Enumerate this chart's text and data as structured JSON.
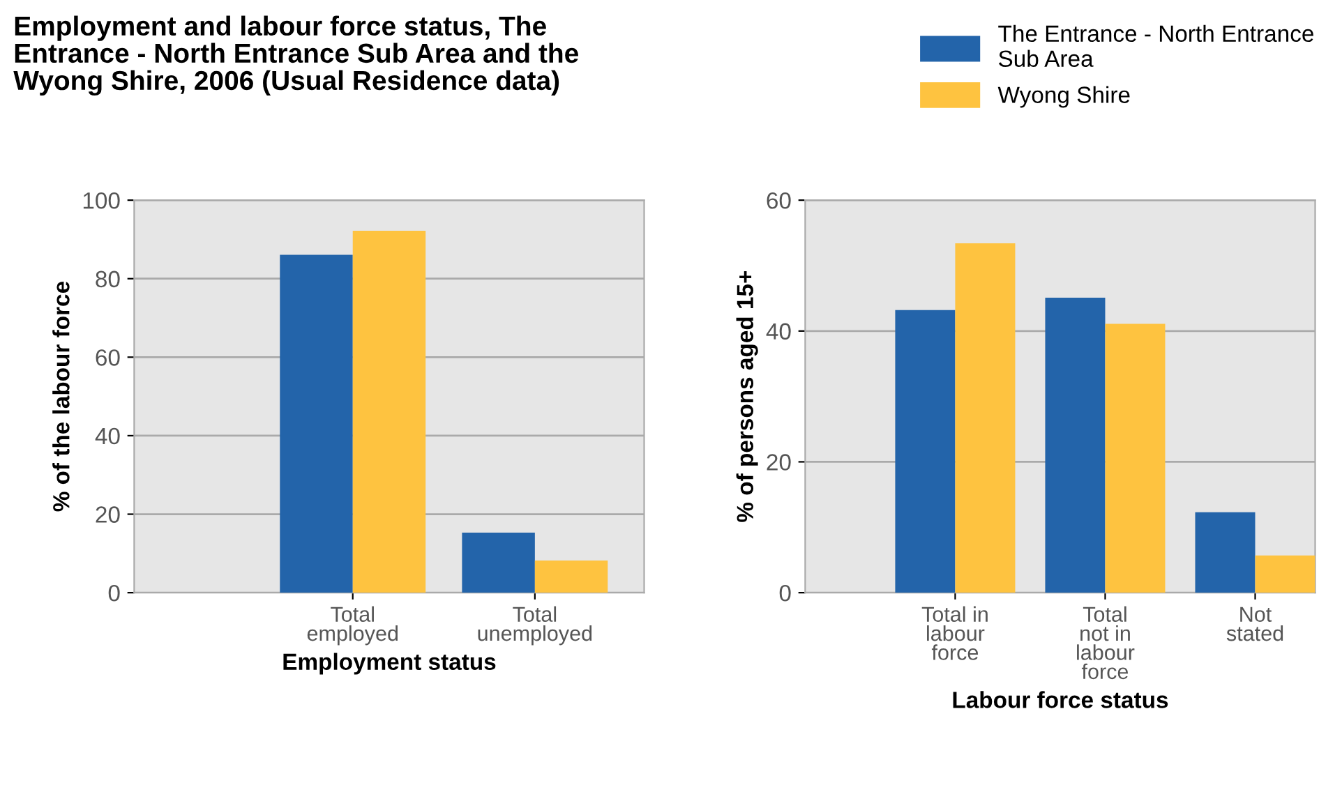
{
  "chart_data": [
    {
      "type": "bar",
      "title": "Employment and labour force status, The\nEntrance - North Entrance Sub Area and the\nWyong Shire, 2006 (Usual Residence data)",
      "xlabel": "Employment status",
      "ylabel": "% of the labour force",
      "categories": [
        "Total\nemployed",
        "Total\nunemployed"
      ],
      "series": [
        {
          "name": "The Entrance - North Entrance\nSub Area",
          "color": "#2364aa",
          "values": [
            86.1,
            15.3
          ]
        },
        {
          "name": "Wyong Shire",
          "color": "#fec340",
          "values": [
            92.2,
            8.2
          ]
        }
      ],
      "ylim": [
        0,
        100
      ],
      "yticks": [
        0,
        20,
        40,
        60,
        80,
        100
      ],
      "grid": "y",
      "legend": "top right"
    },
    {
      "type": "bar",
      "xlabel": "Labour force status",
      "ylabel": "% of persons aged 15+",
      "categories": [
        "Total in\nlabour\nforce",
        "Total\nnot in\nlabour\nforce",
        "Not\nstated"
      ],
      "series": [
        {
          "color": "#2364aa",
          "values": [
            43.2,
            45.1,
            12.3
          ]
        },
        {
          "color": "#fec340",
          "values": [
            53.4,
            41.1,
            5.7
          ]
        }
      ],
      "ylim": [
        0,
        60
      ],
      "yticks": [
        0,
        20,
        40,
        60
      ],
      "grid": "y"
    }
  ]
}
